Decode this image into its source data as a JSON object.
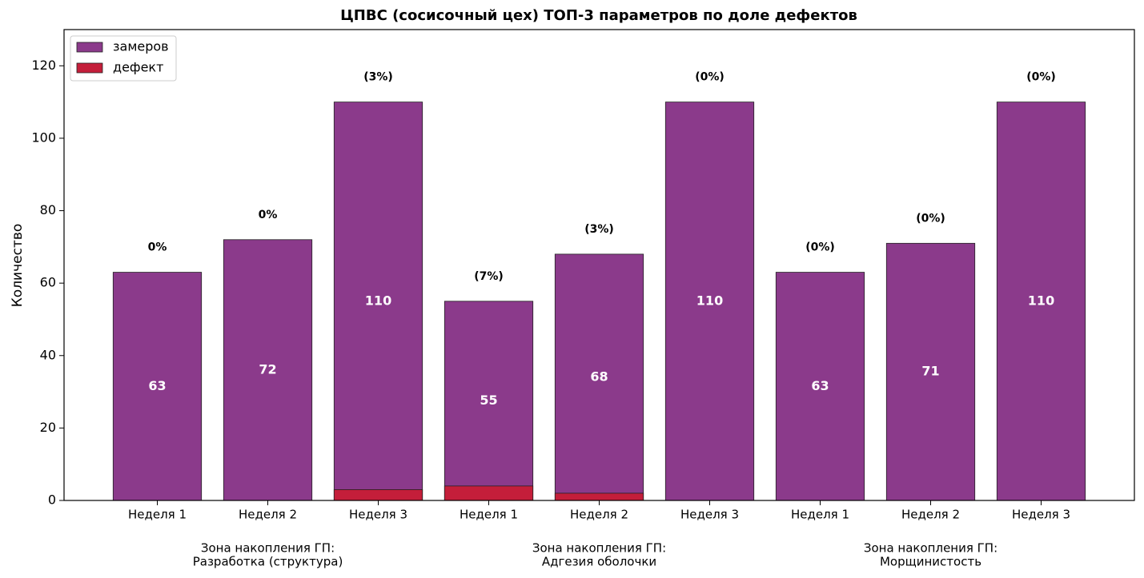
{
  "chart_data": {
    "type": "bar",
    "title": "ЦПВС (сосисочный цех) ТОП-3 параметров по доле дефектов",
    "y_label": "Количество",
    "categories": [
      "Неделя 1",
      "Неделя 2",
      "Неделя 3",
      "Неделя 1",
      "Неделя 2",
      "Неделя 3",
      "Неделя 1",
      "Неделя 2",
      "Неделя 3"
    ],
    "groups": [
      [
        "Зона накопления ГП:",
        "Разработка (структура)"
      ],
      [
        "Зона накопления ГП:",
        "Адгезия оболочки"
      ],
      [
        "Зона накопления ГП:",
        "Морщинистость"
      ]
    ],
    "series": [
      {
        "name": "замеров",
        "color": "#8b3a8b",
        "values": [
          63,
          72,
          110,
          55,
          68,
          110,
          63,
          71,
          110
        ]
      },
      {
        "name": "дефект",
        "color": "#c41e3a",
        "values": [
          0,
          0,
          3,
          4,
          2,
          0,
          0,
          0,
          0
        ]
      }
    ],
    "shares": {
      "values": [
        0,
        0,
        3,
        7,
        3,
        0,
        0,
        0,
        0
      ],
      "value_labels": [
        "0%",
        "0%",
        "(3%)",
        "(7%)",
        "(3%)",
        "(0%)",
        "(0%)",
        "(0%)",
        "(0%)"
      ]
    },
    "ylim": [
      0,
      130
    ],
    "yticks": [
      0,
      20,
      40,
      60,
      80,
      100,
      120
    ],
    "legend": "upper left",
    "grid": false
  }
}
